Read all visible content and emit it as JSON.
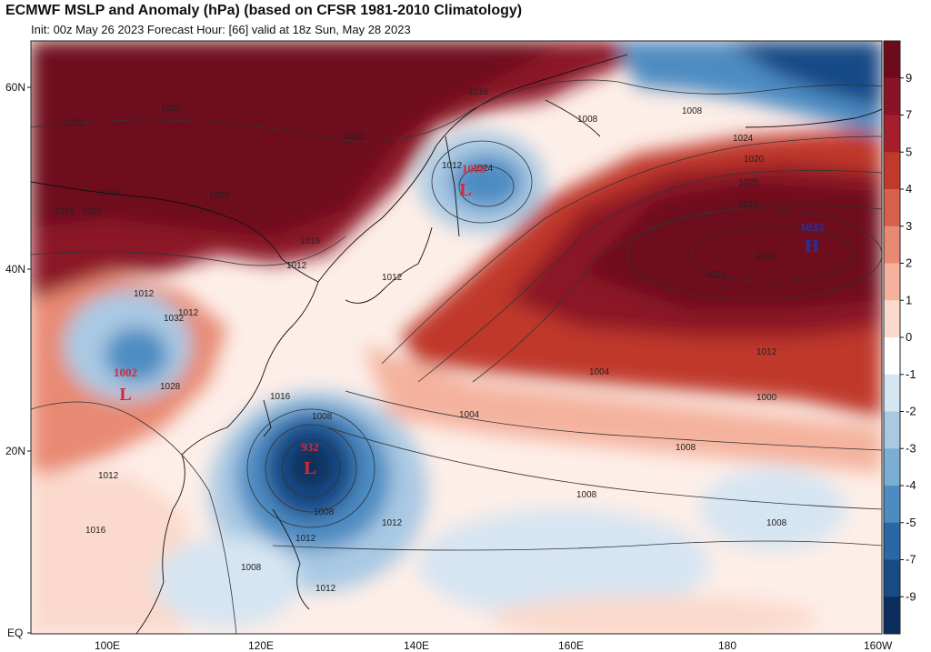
{
  "title": "ECMWF MSLP and Anomaly (hPa) (based on CFSR 1981-2010 Climatology)",
  "subtitle": "Init: 00z May 26 2023   Forecast Hour: [66]   valid at 18z Sun, May 28 2023",
  "lat_labels": [
    "60N",
    "40N",
    "20N",
    "EQ"
  ],
  "lon_labels": [
    "100E",
    "120E",
    "140E",
    "160E",
    "180",
    "160W"
  ],
  "colorbar": {
    "ticks": [
      "9",
      "7",
      "5",
      "4",
      "3",
      "2",
      "1",
      "0",
      "-1",
      "-2",
      "-3",
      "-4",
      "-5",
      "-7",
      "-9"
    ],
    "colors": [
      "#6e0b1a",
      "#8b1327",
      "#a61d2b",
      "#c0392b",
      "#d6604d",
      "#e88a73",
      "#f4b29e",
      "#fbd9cc",
      "#ffffff",
      "#d6e5f2",
      "#a9c9e3",
      "#7caed4",
      "#4d8cc2",
      "#2b66a6",
      "#174a87",
      "#0b2d5c"
    ]
  },
  "centers": [
    {
      "type": "L",
      "value": "932",
      "color": "#d8283a"
    },
    {
      "type": "L",
      "value": "1002",
      "color": "#d8283a"
    },
    {
      "type": "L",
      "value": "1008",
      "color": "#d8283a"
    },
    {
      "type": "H",
      "value": "1033",
      "color": "#2233aa"
    }
  ],
  "contour_labels": [
    "1016",
    "1020",
    "1020",
    "1016",
    "1016",
    "1020",
    "1016",
    "1012",
    "1012",
    "1012",
    "1012",
    "1012",
    "1008",
    "1008",
    "1016",
    "1020",
    "1024",
    "1028",
    "1032",
    "1024",
    "1020",
    "1020",
    "1016",
    "1016",
    "1012",
    "1012",
    "1004",
    "1000",
    "1004",
    "1008",
    "1008",
    "1008",
    "1008",
    "1008",
    "1012",
    "1012",
    "1008",
    "1012",
    "1016",
    "1012",
    "1016"
  ]
}
